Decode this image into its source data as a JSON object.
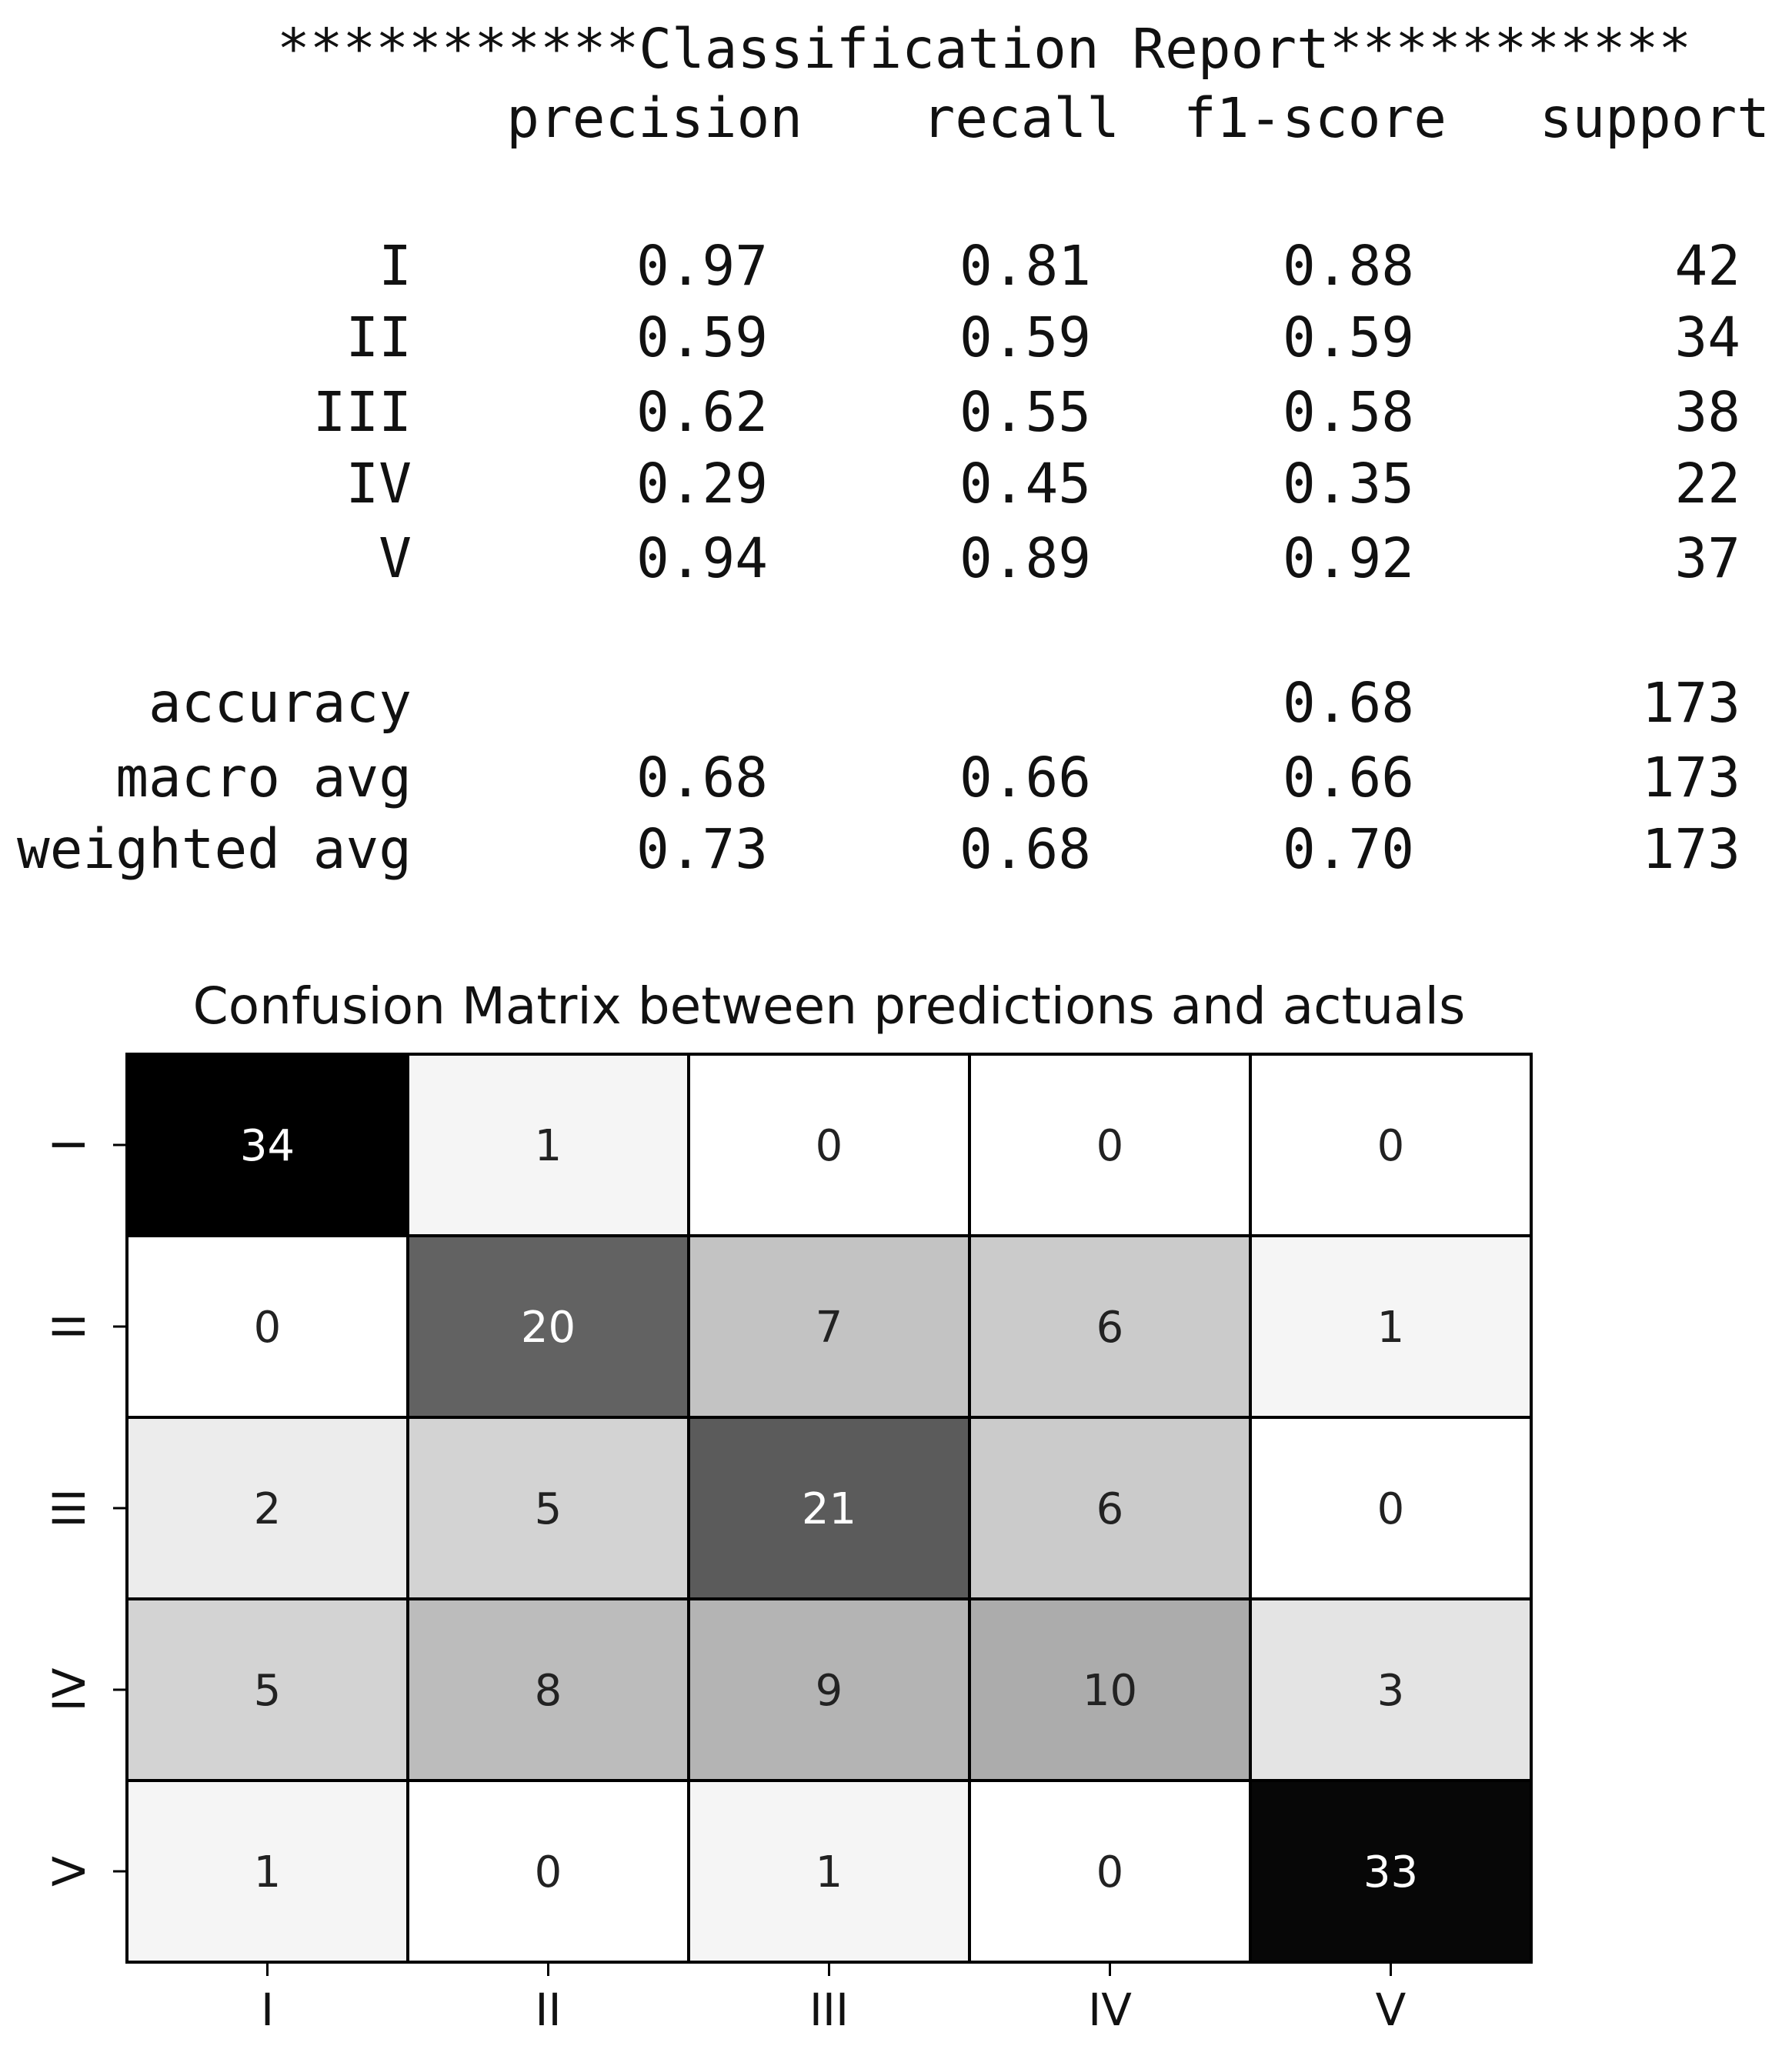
{
  "report": {
    "title": "***********Classification Report***********",
    "columns": [
      "precision",
      "recall",
      "f1-score",
      "support"
    ],
    "rows": [
      {
        "label": "I",
        "precision": "0.97",
        "recall": "0.81",
        "f1": "0.88",
        "support": "42"
      },
      {
        "label": "II",
        "precision": "0.59",
        "recall": "0.59",
        "f1": "0.59",
        "support": "34"
      },
      {
        "label": "III",
        "precision": "0.62",
        "recall": "0.55",
        "f1": "0.58",
        "support": "38"
      },
      {
        "label": "IV",
        "precision": "0.29",
        "recall": "0.45",
        "f1": "0.35",
        "support": "22"
      },
      {
        "label": "V",
        "precision": "0.94",
        "recall": "0.89",
        "f1": "0.92",
        "support": "37"
      }
    ],
    "summary": [
      {
        "label": "accuracy",
        "precision": "",
        "recall": "",
        "f1": "0.68",
        "support": "173"
      },
      {
        "label": "macro avg",
        "precision": "0.68",
        "recall": "0.66",
        "f1": "0.66",
        "support": "173"
      },
      {
        "label": "weighted avg",
        "precision": "0.73",
        "recall": "0.68",
        "f1": "0.70",
        "support": "173"
      }
    ]
  },
  "chart_data": {
    "type": "heatmap",
    "title": "Confusion Matrix between predictions and actuals",
    "x_labels": [
      "I",
      "II",
      "III",
      "IV",
      "V"
    ],
    "y_labels": [
      "I",
      "II",
      "III",
      "IV",
      "V"
    ],
    "values": [
      [
        34,
        1,
        0,
        0,
        0
      ],
      [
        0,
        20,
        7,
        6,
        1
      ],
      [
        2,
        5,
        21,
        6,
        0
      ],
      [
        5,
        8,
        9,
        10,
        3
      ],
      [
        1,
        0,
        1,
        0,
        33
      ]
    ],
    "colormap": "Greys",
    "cell_border_color": "#000000",
    "grid": true
  }
}
